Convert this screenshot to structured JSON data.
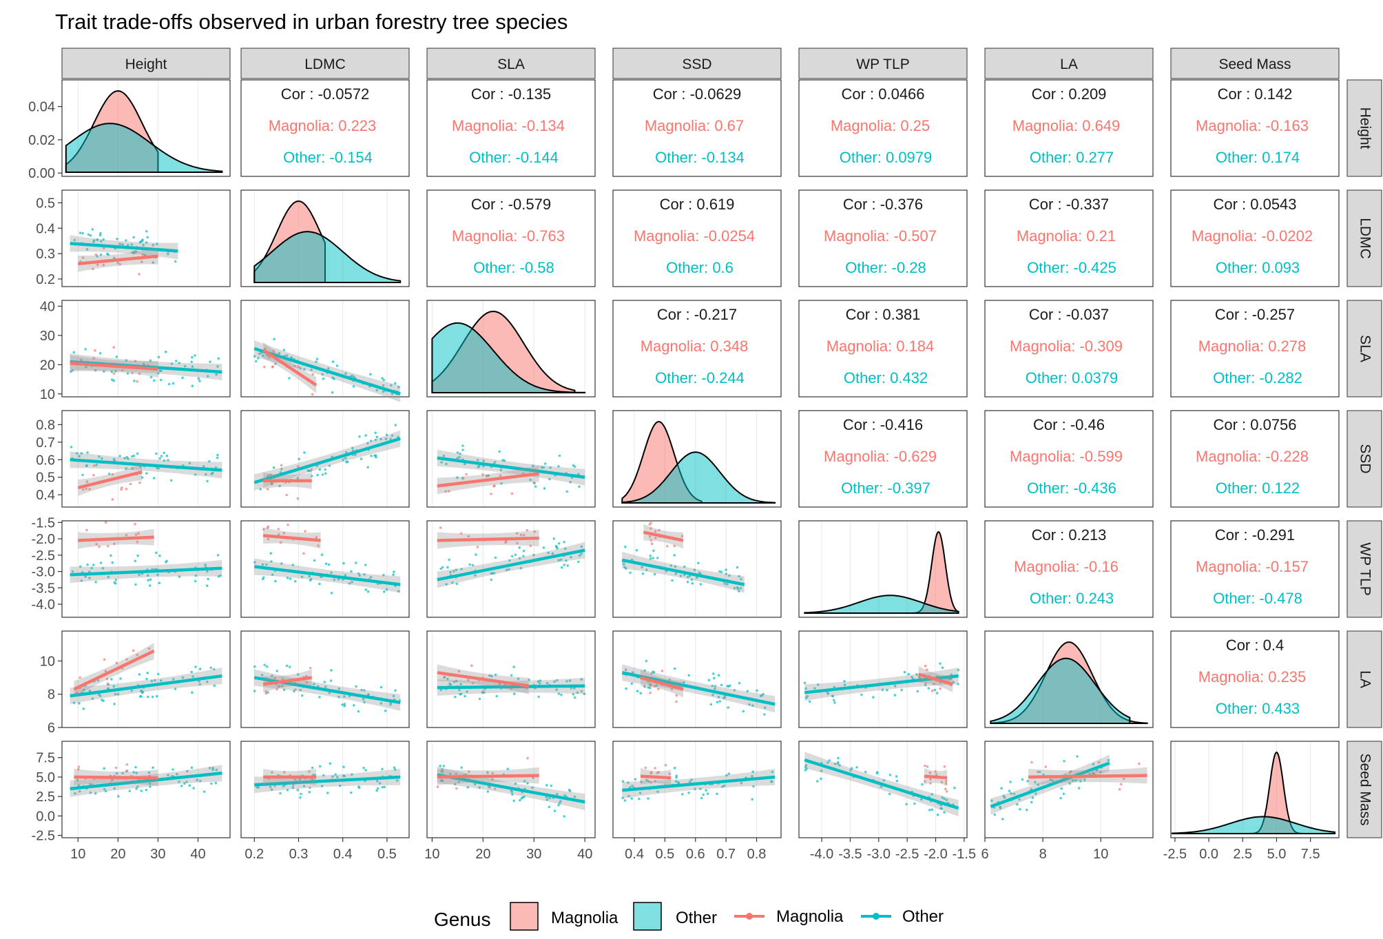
{
  "chart_data": {
    "type": "scatter",
    "title": "Trait trade-offs observed in urban forestry tree species",
    "variables": [
      "Height",
      "LDMC",
      "SLA",
      "SSD",
      "WP TLP",
      "LA",
      "Seed Mass"
    ],
    "colors": {
      "magnolia": "#F8766D",
      "other": "#00BFC4",
      "panel_strip": "#D9D9D9",
      "grid": "#EBEBEB",
      "ribbon": "#999999"
    },
    "axes": [
      {
        "name": "Height",
        "range": [
          6,
          48
        ],
        "ticks": [
          10,
          20,
          30,
          40
        ],
        "tick_labels": [
          "10",
          "20",
          "30",
          "40"
        ]
      },
      {
        "name": "LDMC",
        "range": [
          0.17,
          0.55
        ],
        "ticks": [
          0.2,
          0.3,
          0.4,
          0.5
        ],
        "tick_labels": [
          "0.2",
          "0.3",
          "0.4",
          "0.5"
        ]
      },
      {
        "name": "SLA",
        "range": [
          9,
          42
        ],
        "ticks": [
          10,
          20,
          30,
          40
        ],
        "tick_labels": [
          "10",
          "20",
          "30",
          "40"
        ]
      },
      {
        "name": "SSD",
        "range": [
          0.33,
          0.88
        ],
        "ticks": [
          0.4,
          0.5,
          0.6,
          0.7,
          0.8
        ],
        "tick_labels": [
          "0.4",
          "0.5",
          "0.6",
          "0.7",
          "0.8"
        ]
      },
      {
        "name": "WP TLP",
        "range": [
          -4.4,
          -1.45
        ],
        "ticks": [
          -4.0,
          -3.5,
          -3.0,
          -2.5,
          -2.0,
          -1.5
        ],
        "tick_labels": [
          "-4.0",
          "-3.5",
          "-3.0",
          "-2.5",
          "-2.0",
          "-1.5"
        ]
      },
      {
        "name": "LA",
        "range": [
          6,
          11.8
        ],
        "ticks": [
          6,
          8,
          10
        ],
        "tick_labels": [
          "6",
          "8",
          "10"
        ]
      },
      {
        "name": "Seed Mass",
        "range": [
          -2.8,
          9.6
        ],
        "ticks": [
          -2.5,
          0.0,
          2.5,
          5.0,
          7.5
        ],
        "tick_labels": [
          "-2.5",
          "0.0",
          "2.5",
          "5.0",
          "7.5"
        ]
      }
    ],
    "height_density_ylabels": {
      "range": [
        -0.002,
        0.056
      ],
      "ticks": [
        0.0,
        0.02,
        0.04
      ],
      "tick_labels": [
        "0.00",
        "0.02",
        "0.04"
      ]
    },
    "correlations": [
      {
        "row": 0,
        "col": 1,
        "cor": "Cor : -0.0572",
        "magnolia": "Magnolia: 0.223",
        "other": "Other: -0.154"
      },
      {
        "row": 0,
        "col": 2,
        "cor": "Cor : -0.135",
        "magnolia": "Magnolia: -0.134",
        "other": "Other: -0.144"
      },
      {
        "row": 0,
        "col": 3,
        "cor": "Cor : -0.0629",
        "magnolia": "Magnolia: 0.67",
        "other": "Other: -0.134"
      },
      {
        "row": 0,
        "col": 4,
        "cor": "Cor : 0.0466",
        "magnolia": "Magnolia: 0.25",
        "other": "Other: 0.0979"
      },
      {
        "row": 0,
        "col": 5,
        "cor": "Cor : 0.209",
        "magnolia": "Magnolia: 0.649",
        "other": "Other: 0.277"
      },
      {
        "row": 0,
        "col": 6,
        "cor": "Cor : 0.142",
        "magnolia": "Magnolia: -0.163",
        "other": "Other: 0.174"
      },
      {
        "row": 1,
        "col": 2,
        "cor": "Cor : -0.579",
        "magnolia": "Magnolia: -0.763",
        "other": "Other: -0.58"
      },
      {
        "row": 1,
        "col": 3,
        "cor": "Cor : 0.619",
        "magnolia": "Magnolia: -0.0254",
        "other": "Other: 0.6"
      },
      {
        "row": 1,
        "col": 4,
        "cor": "Cor : -0.376",
        "magnolia": "Magnolia: -0.507",
        "other": "Other: -0.28"
      },
      {
        "row": 1,
        "col": 5,
        "cor": "Cor : -0.337",
        "magnolia": "Magnolia: 0.21",
        "other": "Other: -0.425"
      },
      {
        "row": 1,
        "col": 6,
        "cor": "Cor : 0.0543",
        "magnolia": "Magnolia: -0.0202",
        "other": "Other: 0.093"
      },
      {
        "row": 2,
        "col": 3,
        "cor": "Cor : -0.217",
        "magnolia": "Magnolia: 0.348",
        "other": "Other: -0.244"
      },
      {
        "row": 2,
        "col": 4,
        "cor": "Cor : 0.381",
        "magnolia": "Magnolia: 0.184",
        "other": "Other: 0.432"
      },
      {
        "row": 2,
        "col": 5,
        "cor": "Cor : -0.037",
        "magnolia": "Magnolia: -0.309",
        "other": "Other: 0.0379"
      },
      {
        "row": 2,
        "col": 6,
        "cor": "Cor : -0.257",
        "magnolia": "Magnolia: 0.278",
        "other": "Other: -0.282"
      },
      {
        "row": 3,
        "col": 4,
        "cor": "Cor : -0.416",
        "magnolia": "Magnolia: -0.629",
        "other": "Other: -0.397"
      },
      {
        "row": 3,
        "col": 5,
        "cor": "Cor : -0.46",
        "magnolia": "Magnolia: -0.599",
        "other": "Other: -0.436"
      },
      {
        "row": 3,
        "col": 6,
        "cor": "Cor : 0.0756",
        "magnolia": "Magnolia: -0.228",
        "other": "Other: 0.122"
      },
      {
        "row": 4,
        "col": 5,
        "cor": "Cor : 0.213",
        "magnolia": "Magnolia: -0.16",
        "other": "Other: 0.243"
      },
      {
        "row": 4,
        "col": 6,
        "cor": "Cor : -0.291",
        "magnolia": "Magnolia: -0.157",
        "other": "Other: -0.478"
      },
      {
        "row": 5,
        "col": 6,
        "cor": "Cor : 0.4",
        "magnolia": "Magnolia: 0.235",
        "other": "Other: 0.433"
      }
    ],
    "densities": [
      {
        "var": "Height",
        "magnolia": {
          "center": 20,
          "spread": 6,
          "x0": 7,
          "x1": 30
        },
        "other": {
          "center": 18,
          "spread": 10,
          "x0": 7,
          "x1": 46
        }
      },
      {
        "var": "LDMC",
        "magnolia": {
          "center": 0.3,
          "spread": 0.05,
          "x0": 0.2,
          "x1": 0.36
        },
        "other": {
          "center": 0.32,
          "spread": 0.08,
          "x0": 0.2,
          "x1": 0.53
        }
      },
      {
        "var": "SLA",
        "magnolia": {
          "center": 22,
          "spread": 6,
          "x0": 10,
          "x1": 38
        },
        "other": {
          "center": 15,
          "spread": 7,
          "x0": 10,
          "x1": 40
        }
      },
      {
        "var": "SSD",
        "magnolia": {
          "center": 0.48,
          "spread": 0.05,
          "x0": 0.36,
          "x1": 0.62
        },
        "other": {
          "center": 0.6,
          "spread": 0.08,
          "x0": 0.36,
          "x1": 0.86
        }
      },
      {
        "var": "WP TLP",
        "magnolia": {
          "center": -1.95,
          "spread": 0.12,
          "x0": -2.4,
          "x1": -1.6
        },
        "other": {
          "center": -2.8,
          "spread": 0.55,
          "x0": -4.3,
          "x1": -1.6
        }
      },
      {
        "var": "LA",
        "magnolia": {
          "center": 8.9,
          "spread": 0.8,
          "x0": 6.2,
          "x1": 11.6
        },
        "other": {
          "center": 8.8,
          "spread": 1.0,
          "x0": 6.2,
          "x1": 11.0
        }
      },
      {
        "var": "Seed Mass",
        "magnolia": {
          "center": 5.0,
          "spread": 0.5,
          "x0": 3.0,
          "x1": 7.0
        },
        "other": {
          "center": 4.0,
          "spread": 2.4,
          "x0": -2.7,
          "x1": 9.3
        }
      }
    ],
    "regressions": [
      {
        "row": 1,
        "col": 0,
        "magnolia": [
          [
            10,
            0.26
          ],
          [
            30,
            0.29
          ]
        ],
        "other": [
          [
            8,
            0.34
          ],
          [
            35,
            0.31
          ]
        ]
      },
      {
        "row": 2,
        "col": 0,
        "magnolia": [
          [
            8,
            20.5
          ],
          [
            30,
            18.5
          ]
        ],
        "other": [
          [
            8,
            21
          ],
          [
            46,
            17.5
          ]
        ]
      },
      {
        "row": 2,
        "col": 1,
        "magnolia": [
          [
            0.22,
            25
          ],
          [
            0.34,
            13
          ]
        ],
        "other": [
          [
            0.2,
            25.5
          ],
          [
            0.53,
            10
          ]
        ]
      },
      {
        "row": 3,
        "col": 0,
        "magnolia": [
          [
            10,
            0.44
          ],
          [
            26,
            0.53
          ]
        ],
        "other": [
          [
            8,
            0.6
          ],
          [
            46,
            0.54
          ]
        ]
      },
      {
        "row": 3,
        "col": 1,
        "magnolia": [
          [
            0.22,
            0.48
          ],
          [
            0.33,
            0.48
          ]
        ],
        "other": [
          [
            0.2,
            0.47
          ],
          [
            0.53,
            0.72
          ]
        ]
      },
      {
        "row": 3,
        "col": 2,
        "magnolia": [
          [
            11,
            0.45
          ],
          [
            31,
            0.52
          ]
        ],
        "other": [
          [
            11,
            0.61
          ],
          [
            40,
            0.5
          ]
        ]
      },
      {
        "row": 4,
        "col": 0,
        "magnolia": [
          [
            10,
            -2.05
          ],
          [
            29,
            -1.95
          ]
        ],
        "other": [
          [
            8,
            -3.1
          ],
          [
            46,
            -2.9
          ]
        ]
      },
      {
        "row": 4,
        "col": 1,
        "magnolia": [
          [
            0.22,
            -1.9
          ],
          [
            0.35,
            -2.05
          ]
        ],
        "other": [
          [
            0.2,
            -2.85
          ],
          [
            0.53,
            -3.4
          ]
        ]
      },
      {
        "row": 4,
        "col": 2,
        "magnolia": [
          [
            11,
            -2.05
          ],
          [
            31,
            -1.98
          ]
        ],
        "other": [
          [
            11,
            -3.25
          ],
          [
            40,
            -2.35
          ]
        ]
      },
      {
        "row": 4,
        "col": 3,
        "magnolia": [
          [
            0.43,
            -1.8
          ],
          [
            0.56,
            -2.05
          ]
        ],
        "other": [
          [
            0.36,
            -2.65
          ],
          [
            0.76,
            -3.4
          ]
        ]
      },
      {
        "row": 5,
        "col": 0,
        "magnolia": [
          [
            9,
            8.3
          ],
          [
            29,
            10.6
          ]
        ],
        "other": [
          [
            8,
            7.9
          ],
          [
            46,
            9.1
          ]
        ]
      },
      {
        "row": 5,
        "col": 1,
        "magnolia": [
          [
            0.22,
            8.6
          ],
          [
            0.33,
            9.0
          ]
        ],
        "other": [
          [
            0.2,
            9.0
          ],
          [
            0.53,
            7.5
          ]
        ]
      },
      {
        "row": 5,
        "col": 2,
        "magnolia": [
          [
            11,
            9.3
          ],
          [
            29,
            8.5
          ]
        ],
        "other": [
          [
            11,
            8.4
          ],
          [
            40,
            8.5
          ]
        ]
      },
      {
        "row": 5,
        "col": 3,
        "magnolia": [
          [
            0.42,
            9.0
          ],
          [
            0.56,
            8.3
          ]
        ],
        "other": [
          [
            0.36,
            9.3
          ],
          [
            0.86,
            7.4
          ]
        ]
      },
      {
        "row": 5,
        "col": 4,
        "magnolia": [
          [
            -2.3,
            9.2
          ],
          [
            -1.7,
            8.6
          ]
        ],
        "other": [
          [
            -4.3,
            8.1
          ],
          [
            -1.6,
            9.1
          ]
        ]
      },
      {
        "row": 6,
        "col": 0,
        "magnolia": [
          [
            9,
            5.0
          ],
          [
            30,
            4.9
          ]
        ],
        "other": [
          [
            8,
            3.5
          ],
          [
            46,
            5.5
          ]
        ]
      },
      {
        "row": 6,
        "col": 1,
        "magnolia": [
          [
            0.22,
            5.0
          ],
          [
            0.34,
            5.0
          ]
        ],
        "other": [
          [
            0.2,
            4.0
          ],
          [
            0.53,
            5.0
          ]
        ]
      },
      {
        "row": 6,
        "col": 2,
        "magnolia": [
          [
            11,
            5.0
          ],
          [
            31,
            5.2
          ]
        ],
        "other": [
          [
            11,
            5.3
          ],
          [
            40,
            1.8
          ]
        ]
      },
      {
        "row": 6,
        "col": 3,
        "magnolia": [
          [
            0.42,
            5.1
          ],
          [
            0.52,
            4.9
          ]
        ],
        "other": [
          [
            0.36,
            3.3
          ],
          [
            0.86,
            5.0
          ]
        ]
      },
      {
        "row": 6,
        "col": 4,
        "magnolia": [
          [
            -2.2,
            5.1
          ],
          [
            -1.8,
            4.9
          ]
        ],
        "other": [
          [
            -4.3,
            7.2
          ],
          [
            -1.6,
            1.0
          ]
        ]
      },
      {
        "row": 6,
        "col": 5,
        "magnolia": [
          [
            7.5,
            5.0
          ],
          [
            11.6,
            5.2
          ]
        ],
        "other": [
          [
            6.2,
            1.2
          ],
          [
            10.3,
            6.8
          ]
        ]
      }
    ],
    "legend": {
      "title": "Genus",
      "fill_items": [
        "Magnolia",
        "Other"
      ],
      "line_items": [
        "Magnolia",
        "Other"
      ],
      "position": "bottom"
    }
  }
}
